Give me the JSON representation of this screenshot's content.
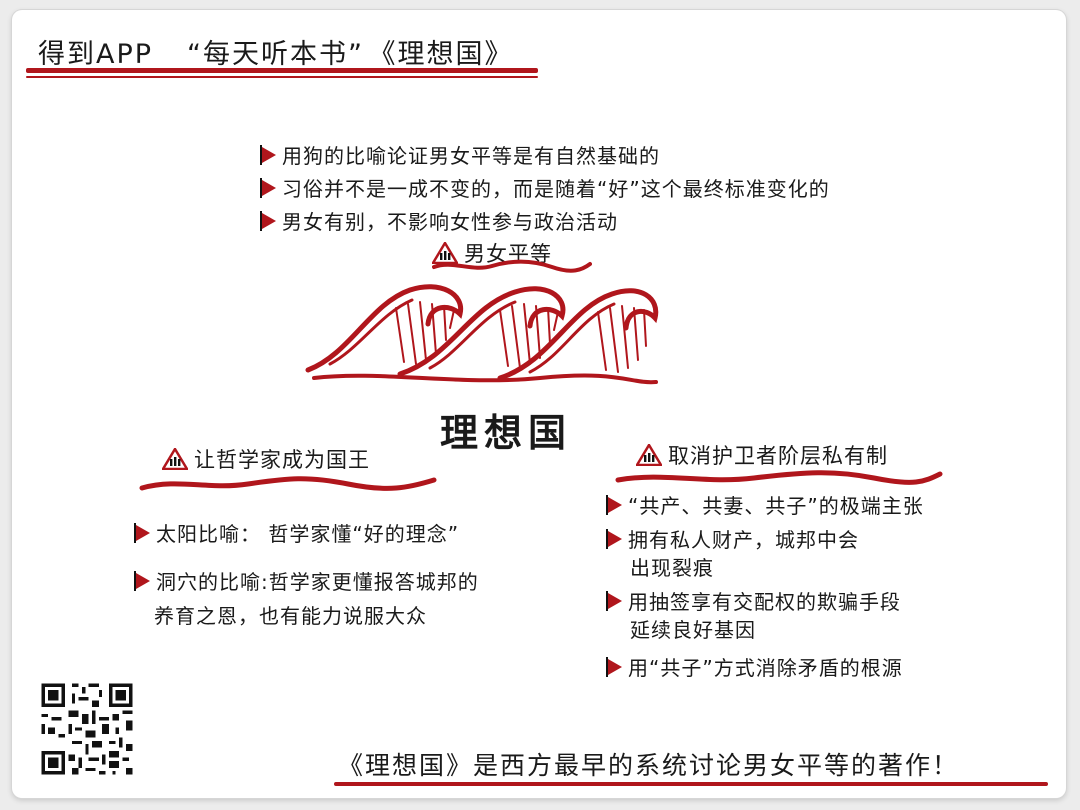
{
  "header": {
    "brand": "得到APP",
    "program": "“每天听本书”",
    "book": "《理想国》"
  },
  "center_title": "理想国",
  "top_section": {
    "title": "男女平等",
    "bullets": [
      "用狗的比喻论证男女平等是有自然基础的",
      "习俗并不是一成不变的，而是随着“好”这个最终标准变化的",
      "男女有别，不影响女性参与政治活动"
    ]
  },
  "left_section": {
    "title": "让哲学家成为国王",
    "bullets": [
      {
        "line1": "太阳比喻： 哲学家懂“好的理念”",
        "line2": ""
      },
      {
        "line1": "洞穴的比喻:哲学家更懂报答城邦的",
        "line2": "养育之恩，也有能力说服大众"
      }
    ]
  },
  "right_section": {
    "title": "取消护卫者阶层私有制",
    "bullets": [
      {
        "line1": "“共产、共妻、共子”的极端主张",
        "line2": ""
      },
      {
        "line1": "拥有私人财产，城邦中会",
        "line2": "出现裂痕"
      },
      {
        "line1": "用抽签享有交配权的欺骗手段",
        "line2": "延续良好基因"
      },
      {
        "line1": "用“共子”方式消除矛盾的根源",
        "line2": ""
      }
    ]
  },
  "footer": "《理想国》是西方最早的系统讨论男女平等的著作！",
  "icons": {
    "bullet": "red-triangle-bullet-icon",
    "section": "warning-triangle-icon",
    "waves": "red-waves-icon",
    "qr": "qr-code-icon"
  },
  "colors": {
    "accent": "#b0161c",
    "ink": "#1a1a1a"
  }
}
